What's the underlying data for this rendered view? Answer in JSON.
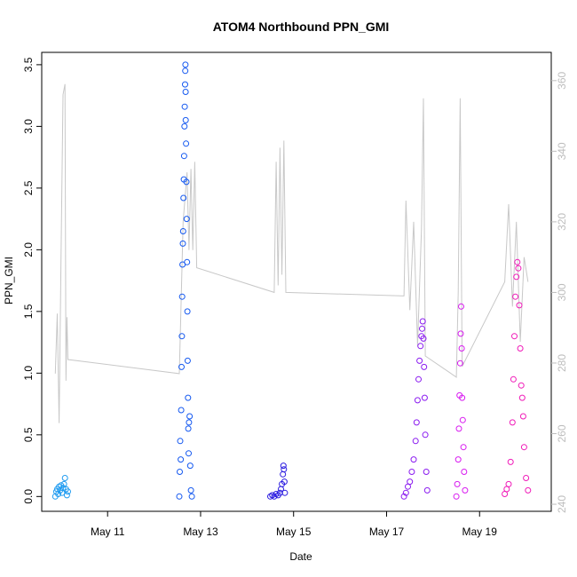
{
  "chart_data": {
    "type": "scatter",
    "title": "ATOM4 Northbound PPN_GMI",
    "xlabel": "Date",
    "ylabel": "PPN_GMI",
    "x_ticks": [
      {
        "date": "2016-05-11",
        "label": "May 11"
      },
      {
        "date": "2016-05-13",
        "label": "May 13"
      },
      {
        "date": "2016-05-15",
        "label": "May 15"
      },
      {
        "date": "2016-05-17",
        "label": "May 17"
      },
      {
        "date": "2016-05-19",
        "label": "May 19"
      }
    ],
    "xlim": [
      "2016-05-09 14:00",
      "2016-05-20 13:00"
    ],
    "ylim": [
      -0.12,
      3.6
    ],
    "y_ticks": [
      "0.0",
      "0.5",
      "1.0",
      "1.5",
      "2.0",
      "2.5",
      "3.0",
      "3.5"
    ],
    "y2lim": [
      238,
      368
    ],
    "y2_ticks": [
      "240",
      "260",
      "280",
      "300",
      "320",
      "340",
      "360"
    ],
    "y2_color": "#bdbdbd",
    "series": [
      {
        "color": "#1f9bf0",
        "points": [
          [
            "2016-05-09 21:00",
            0.0
          ],
          [
            "2016-05-09 21:30",
            0.04
          ],
          [
            "2016-05-09 22:00",
            0.06
          ],
          [
            "2016-05-09 22:30",
            0.02
          ],
          [
            "2016-05-09 23:00",
            0.08
          ],
          [
            "2016-05-09 23:30",
            0.05
          ],
          [
            "2016-05-10 00:00",
            0.09
          ],
          [
            "2016-05-10 00:30",
            0.03
          ],
          [
            "2016-05-10 01:00",
            0.07
          ],
          [
            "2016-05-10 01:30",
            0.1
          ],
          [
            "2016-05-10 02:00",
            0.15
          ],
          [
            "2016-05-10 02:30",
            0.06
          ],
          [
            "2016-05-10 03:00",
            0.01
          ],
          [
            "2016-05-10 03:30",
            0.04
          ]
        ]
      },
      {
        "color": "#1458f0",
        "points": [
          [
            "2016-05-12 13:00",
            0.0
          ],
          [
            "2016-05-12 13:15",
            0.2
          ],
          [
            "2016-05-12 13:30",
            0.45
          ],
          [
            "2016-05-12 13:45",
            0.3
          ],
          [
            "2016-05-12 14:00",
            0.7
          ],
          [
            "2016-05-12 14:10",
            1.05
          ],
          [
            "2016-05-12 14:20",
            1.3
          ],
          [
            "2016-05-12 14:30",
            1.62
          ],
          [
            "2016-05-12 14:40",
            1.88
          ],
          [
            "2016-05-12 14:50",
            2.05
          ],
          [
            "2016-05-12 15:00",
            2.15
          ],
          [
            "2016-05-12 15:10",
            2.42
          ],
          [
            "2016-05-12 15:20",
            2.57
          ],
          [
            "2016-05-12 15:30",
            2.76
          ],
          [
            "2016-05-12 15:40",
            3.0
          ],
          [
            "2016-05-12 15:50",
            3.16
          ],
          [
            "2016-05-12 16:00",
            3.34
          ],
          [
            "2016-05-12 16:05",
            3.45
          ],
          [
            "2016-05-12 16:10",
            3.5
          ],
          [
            "2016-05-12 16:15",
            3.28
          ],
          [
            "2016-05-12 16:20",
            3.05
          ],
          [
            "2016-05-12 16:30",
            2.86
          ],
          [
            "2016-05-12 16:40",
            2.55
          ],
          [
            "2016-05-12 16:50",
            2.25
          ],
          [
            "2016-05-12 17:00",
            1.9
          ],
          [
            "2016-05-12 17:10",
            1.5
          ],
          [
            "2016-05-12 17:20",
            1.1
          ],
          [
            "2016-05-12 17:30",
            0.8
          ],
          [
            "2016-05-12 17:40",
            0.55
          ],
          [
            "2016-05-12 17:50",
            0.35
          ],
          [
            "2016-05-12 18:00",
            0.6
          ],
          [
            "2016-05-12 18:20",
            0.65
          ],
          [
            "2016-05-12 18:40",
            0.25
          ],
          [
            "2016-05-12 19:00",
            0.05
          ],
          [
            "2016-05-12 19:30",
            0.0
          ]
        ]
      },
      {
        "color": "#2a1ae0",
        "points": [
          [
            "2016-05-14 12:00",
            0.0
          ],
          [
            "2016-05-14 13:00",
            0.01
          ],
          [
            "2016-05-14 14:00",
            0.0
          ],
          [
            "2016-05-14 15:00",
            0.02
          ],
          [
            "2016-05-14 16:00",
            0.01
          ],
          [
            "2016-05-14 17:00",
            0.03
          ],
          [
            "2016-05-14 17:30",
            0.06
          ],
          [
            "2016-05-14 18:00",
            0.1
          ],
          [
            "2016-05-14 18:30",
            0.18
          ],
          [
            "2016-05-14 18:45",
            0.25
          ],
          [
            "2016-05-14 19:00",
            0.22
          ],
          [
            "2016-05-14 19:15",
            0.12
          ],
          [
            "2016-05-14 19:30",
            0.03
          ]
        ]
      },
      {
        "color": "#8a1af0",
        "points": [
          [
            "2016-05-17 09:00",
            0.0
          ],
          [
            "2016-05-17 10:00",
            0.03
          ],
          [
            "2016-05-17 11:00",
            0.08
          ],
          [
            "2016-05-17 12:00",
            0.12
          ],
          [
            "2016-05-17 13:00",
            0.2
          ],
          [
            "2016-05-17 14:00",
            0.3
          ],
          [
            "2016-05-17 15:00",
            0.45
          ],
          [
            "2016-05-17 15:30",
            0.6
          ],
          [
            "2016-05-17 16:00",
            0.78
          ],
          [
            "2016-05-17 16:30",
            0.95
          ],
          [
            "2016-05-17 17:00",
            1.1
          ],
          [
            "2016-05-17 17:30",
            1.22
          ],
          [
            "2016-05-17 18:00",
            1.3
          ],
          [
            "2016-05-17 18:20",
            1.36
          ],
          [
            "2016-05-17 18:40",
            1.42
          ],
          [
            "2016-05-17 19:00",
            1.28
          ],
          [
            "2016-05-17 19:20",
            1.05
          ],
          [
            "2016-05-17 19:40",
            0.8
          ],
          [
            "2016-05-17 20:00",
            0.5
          ],
          [
            "2016-05-17 20:30",
            0.2
          ],
          [
            "2016-05-17 21:00",
            0.05
          ]
        ]
      },
      {
        "color": "#d81af0",
        "points": [
          [
            "2016-05-18 12:00",
            0.0
          ],
          [
            "2016-05-18 12:30",
            0.1
          ],
          [
            "2016-05-18 13:00",
            0.3
          ],
          [
            "2016-05-18 13:20",
            0.55
          ],
          [
            "2016-05-18 13:40",
            0.82
          ],
          [
            "2016-05-18 14:00",
            1.08
          ],
          [
            "2016-05-18 14:15",
            1.32
          ],
          [
            "2016-05-18 14:30",
            1.54
          ],
          [
            "2016-05-18 14:45",
            1.2
          ],
          [
            "2016-05-18 15:00",
            0.8
          ],
          [
            "2016-05-18 15:20",
            0.62
          ],
          [
            "2016-05-18 15:40",
            0.4
          ],
          [
            "2016-05-18 16:00",
            0.2
          ],
          [
            "2016-05-18 16:30",
            0.05
          ]
        ]
      },
      {
        "color": "#f01ab8",
        "points": [
          [
            "2016-05-19 13:00",
            0.02
          ],
          [
            "2016-05-19 14:00",
            0.06
          ],
          [
            "2016-05-19 15:00",
            0.1
          ],
          [
            "2016-05-19 16:00",
            0.28
          ],
          [
            "2016-05-19 17:00",
            0.6
          ],
          [
            "2016-05-19 17:30",
            0.95
          ],
          [
            "2016-05-19 18:00",
            1.3
          ],
          [
            "2016-05-19 18:30",
            1.62
          ],
          [
            "2016-05-19 19:00",
            1.78
          ],
          [
            "2016-05-19 19:30",
            1.9
          ],
          [
            "2016-05-19 20:00",
            1.85
          ],
          [
            "2016-05-19 20:30",
            1.55
          ],
          [
            "2016-05-19 21:00",
            1.2
          ],
          [
            "2016-05-19 21:30",
            0.9
          ],
          [
            "2016-05-19 22:00",
            0.8
          ],
          [
            "2016-05-19 22:30",
            0.65
          ],
          [
            "2016-05-19 23:00",
            0.4
          ],
          [
            "2016-05-20 00:00",
            0.15
          ],
          [
            "2016-05-20 01:00",
            0.05
          ]
        ]
      }
    ],
    "overlay_line": {
      "color": "#c8c8c8",
      "points": [
        [
          "2016-05-09 21:00",
          277
        ],
        [
          "2016-05-09 22:00",
          294
        ],
        [
          "2016-05-09 23:00",
          263
        ],
        [
          "2016-05-10 00:00",
          311
        ],
        [
          "2016-05-10 01:00",
          356
        ],
        [
          "2016-05-10 02:00",
          359
        ],
        [
          "2016-05-10 02:30",
          275
        ],
        [
          "2016-05-10 03:00",
          293
        ],
        [
          "2016-05-10 03:30",
          281
        ],
        [
          "2016-05-12 13:00",
          277
        ],
        [
          "2016-05-12 15:00",
          320
        ],
        [
          "2016-05-12 17:00",
          334
        ],
        [
          "2016-05-12 18:00",
          312
        ],
        [
          "2016-05-12 19:00",
          335
        ],
        [
          "2016-05-12 20:00",
          312
        ],
        [
          "2016-05-12 21:00",
          337
        ],
        [
          "2016-05-12 22:00",
          307
        ],
        [
          "2016-05-14 14:00",
          300
        ],
        [
          "2016-05-14 15:00",
          337
        ],
        [
          "2016-05-14 16:00",
          302
        ],
        [
          "2016-05-14 17:00",
          341
        ],
        [
          "2016-05-14 18:00",
          305
        ],
        [
          "2016-05-14 19:00",
          343
        ],
        [
          "2016-05-14 20:00",
          300
        ],
        [
          "2016-05-17 09:00",
          299
        ],
        [
          "2016-05-17 10:00",
          326
        ],
        [
          "2016-05-17 12:00",
          295
        ],
        [
          "2016-05-17 14:00",
          320
        ],
        [
          "2016-05-17 16:00",
          285
        ],
        [
          "2016-05-17 18:00",
          318
        ],
        [
          "2016-05-17 19:00",
          355
        ],
        [
          "2016-05-17 20:00",
          282
        ],
        [
          "2016-05-18 12:00",
          276
        ],
        [
          "2016-05-18 13:00",
          300
        ],
        [
          "2016-05-18 14:00",
          355
        ],
        [
          "2016-05-18 15:00",
          279
        ],
        [
          "2016-05-19 13:00",
          303
        ],
        [
          "2016-05-19 15:00",
          325
        ],
        [
          "2016-05-19 17:00",
          296
        ],
        [
          "2016-05-19 19:00",
          320
        ],
        [
          "2016-05-19 21:00",
          286
        ],
        [
          "2016-05-19 23:00",
          310
        ],
        [
          "2016-05-20 01:00",
          303
        ]
      ]
    },
    "grid": false,
    "legend": "none"
  }
}
